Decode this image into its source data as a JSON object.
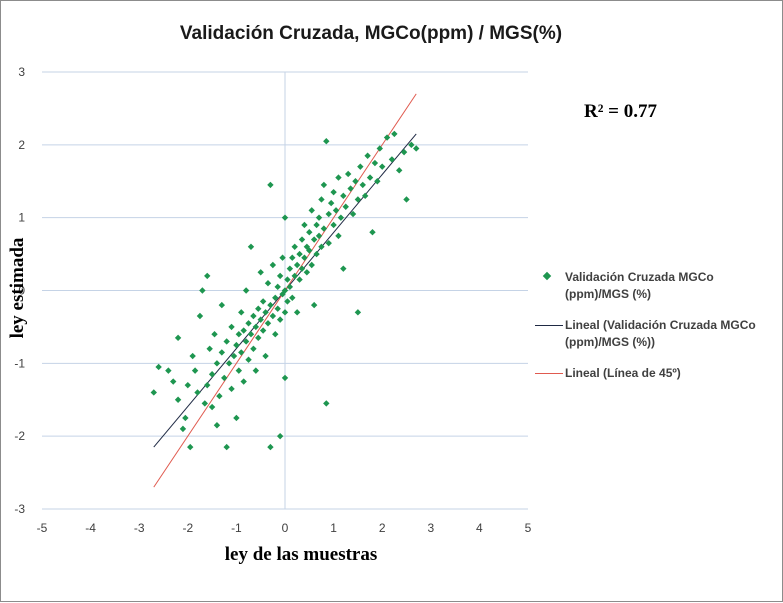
{
  "chart_data": {
    "type": "scatter",
    "title": "Validación Cruzada, MGCo(ppm) / MGS(%)",
    "xlabel": "ley de las muestras",
    "ylabel": "ley estimada",
    "xlim": [
      -5,
      5
    ],
    "ylim": [
      -3,
      3
    ],
    "x_ticks": [
      "-5",
      "-4",
      "-3",
      "-2",
      "-1",
      "0",
      "1",
      "2",
      "3",
      "4",
      "5"
    ],
    "y_ticks": [
      "3",
      "2",
      "1",
      "0",
      "-1",
      "-2",
      "-3"
    ],
    "grid": "horizontal major gridlines",
    "legend_position": "right",
    "annotation": "R² = 0.77",
    "series": [
      {
        "name": "Validación Cruzada MGCo (ppm)/MGS (%)",
        "marker": "diamond",
        "color": "#1e9650",
        "points": [
          [
            -2.7,
            -1.4
          ],
          [
            -2.6,
            -1.05
          ],
          [
            -2.4,
            -1.1
          ],
          [
            -2.3,
            -1.25
          ],
          [
            -2.2,
            -0.65
          ],
          [
            -2.2,
            -1.5
          ],
          [
            -2.1,
            -1.9
          ],
          [
            -2.05,
            -1.75
          ],
          [
            -2.0,
            -1.3
          ],
          [
            -1.95,
            -2.15
          ],
          [
            -1.9,
            -0.9
          ],
          [
            -1.85,
            -1.1
          ],
          [
            -1.8,
            -1.4
          ],
          [
            -1.75,
            -0.35
          ],
          [
            -1.7,
            0.0
          ],
          [
            -1.65,
            -1.55
          ],
          [
            -1.6,
            0.2
          ],
          [
            -1.6,
            -1.3
          ],
          [
            -1.55,
            -0.8
          ],
          [
            -1.5,
            -1.15
          ],
          [
            -1.5,
            -1.6
          ],
          [
            -1.45,
            -0.6
          ],
          [
            -1.4,
            -1.0
          ],
          [
            -1.4,
            -1.85
          ],
          [
            -1.35,
            -1.45
          ],
          [
            -1.3,
            -0.85
          ],
          [
            -1.3,
            -0.2
          ],
          [
            -1.25,
            -1.2
          ],
          [
            -1.2,
            -0.7
          ],
          [
            -1.2,
            -2.15
          ],
          [
            -1.15,
            -1.0
          ],
          [
            -1.1,
            -0.5
          ],
          [
            -1.1,
            -1.35
          ],
          [
            -1.05,
            -0.9
          ],
          [
            -1.0,
            -0.75
          ],
          [
            -1.0,
            -1.75
          ],
          [
            -0.95,
            -0.6
          ],
          [
            -0.95,
            -1.1
          ],
          [
            -0.9,
            -0.3
          ],
          [
            -0.9,
            -0.85
          ],
          [
            -0.85,
            -0.55
          ],
          [
            -0.85,
            -1.25
          ],
          [
            -0.8,
            -0.7
          ],
          [
            -0.8,
            0.0
          ],
          [
            -0.75,
            -0.45
          ],
          [
            -0.75,
            -0.95
          ],
          [
            -0.7,
            -0.6
          ],
          [
            -0.7,
            0.6
          ],
          [
            -0.65,
            -0.35
          ],
          [
            -0.65,
            -0.8
          ],
          [
            -0.6,
            -0.5
          ],
          [
            -0.6,
            -1.1
          ],
          [
            -0.55,
            -0.25
          ],
          [
            -0.55,
            -0.65
          ],
          [
            -0.5,
            -0.4
          ],
          [
            -0.5,
            0.25
          ],
          [
            -0.45,
            -0.55
          ],
          [
            -0.45,
            -0.15
          ],
          [
            -0.4,
            -0.3
          ],
          [
            -0.4,
            -0.9
          ],
          [
            -0.35,
            0.1
          ],
          [
            -0.35,
            -0.45
          ],
          [
            -0.3,
            -0.2
          ],
          [
            -0.3,
            1.45
          ],
          [
            -0.3,
            -2.15
          ],
          [
            -0.25,
            -0.35
          ],
          [
            -0.25,
            0.35
          ],
          [
            -0.2,
            -0.1
          ],
          [
            -0.2,
            -0.6
          ],
          [
            -0.15,
            0.05
          ],
          [
            -0.15,
            -0.25
          ],
          [
            -0.1,
            -0.4
          ],
          [
            -0.1,
            0.2
          ],
          [
            -0.1,
            -2.0
          ],
          [
            -0.05,
            -0.05
          ],
          [
            -0.05,
            0.45
          ],
          [
            0.0,
            0.0
          ],
          [
            0.0,
            -0.3
          ],
          [
            0.0,
            1.0
          ],
          [
            0.0,
            -1.2
          ],
          [
            0.05,
            0.15
          ],
          [
            0.05,
            -0.15
          ],
          [
            0.1,
            0.3
          ],
          [
            0.1,
            0.05
          ],
          [
            0.15,
            0.45
          ],
          [
            0.15,
            -0.1
          ],
          [
            0.2,
            0.2
          ],
          [
            0.2,
            0.6
          ],
          [
            0.25,
            0.35
          ],
          [
            0.25,
            -0.3
          ],
          [
            0.3,
            0.5
          ],
          [
            0.3,
            0.15
          ],
          [
            0.35,
            0.7
          ],
          [
            0.35,
            0.3
          ],
          [
            0.4,
            0.45
          ],
          [
            0.4,
            0.9
          ],
          [
            0.45,
            0.25
          ],
          [
            0.45,
            0.6
          ],
          [
            0.5,
            0.55
          ],
          [
            0.5,
            0.8
          ],
          [
            0.55,
            0.35
          ],
          [
            0.55,
            1.1
          ],
          [
            0.6,
            0.7
          ],
          [
            0.6,
            -0.2
          ],
          [
            0.65,
            0.9
          ],
          [
            0.65,
            0.5
          ],
          [
            0.7,
            1.0
          ],
          [
            0.7,
            0.75
          ],
          [
            0.75,
            0.6
          ],
          [
            0.75,
            1.25
          ],
          [
            0.8,
            0.85
          ],
          [
            0.8,
            1.45
          ],
          [
            0.85,
            2.05
          ],
          [
            0.85,
            -1.55
          ],
          [
            0.9,
            1.05
          ],
          [
            0.9,
            0.65
          ],
          [
            0.95,
            1.2
          ],
          [
            1.0,
            0.9
          ],
          [
            1.0,
            1.35
          ],
          [
            1.05,
            1.1
          ],
          [
            1.1,
            0.75
          ],
          [
            1.1,
            1.55
          ],
          [
            1.15,
            1.0
          ],
          [
            1.2,
            1.3
          ],
          [
            1.2,
            0.3
          ],
          [
            1.25,
            1.15
          ],
          [
            1.3,
            1.6
          ],
          [
            1.35,
            1.4
          ],
          [
            1.4,
            1.05
          ],
          [
            1.45,
            1.5
          ],
          [
            1.5,
            1.25
          ],
          [
            1.5,
            -0.3
          ],
          [
            1.55,
            1.7
          ],
          [
            1.6,
            1.45
          ],
          [
            1.65,
            1.3
          ],
          [
            1.7,
            1.85
          ],
          [
            1.75,
            1.55
          ],
          [
            1.8,
            0.8
          ],
          [
            1.85,
            1.75
          ],
          [
            1.9,
            1.5
          ],
          [
            1.95,
            1.95
          ],
          [
            2.0,
            1.7
          ],
          [
            2.1,
            2.1
          ],
          [
            2.2,
            1.8
          ],
          [
            2.25,
            2.15
          ],
          [
            2.35,
            1.65
          ],
          [
            2.45,
            1.9
          ],
          [
            2.5,
            1.25
          ],
          [
            2.6,
            2.0
          ],
          [
            2.7,
            1.95
          ]
        ]
      },
      {
        "name": "Lineal (Validación Cruzada MGCo (ppm)/MGS (%))",
        "type": "line",
        "color": "#1f2a44",
        "points": [
          [
            -2.7,
            -2.15
          ],
          [
            2.7,
            2.15
          ]
        ]
      },
      {
        "name": "Lineal (Línea de 45º)",
        "type": "line",
        "color": "#e05a4f",
        "points": [
          [
            -2.7,
            -2.7
          ],
          [
            2.7,
            2.7
          ]
        ]
      }
    ]
  }
}
